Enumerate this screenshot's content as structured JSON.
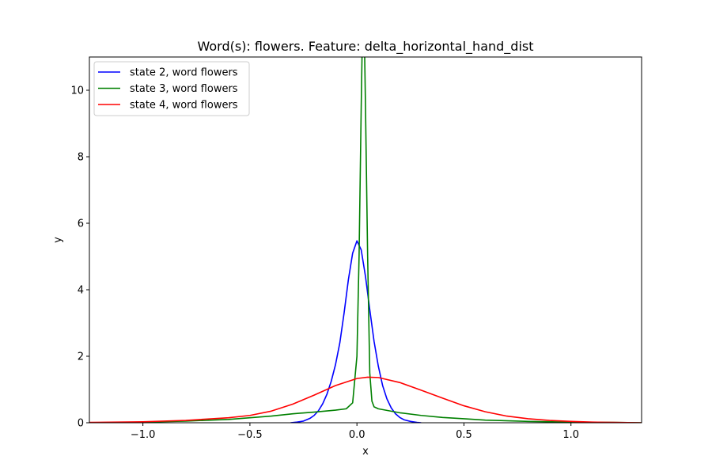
{
  "chart_data": {
    "type": "line",
    "title": "Word(s): flowers. Feature: delta_horizontal_hand_dist",
    "xlabel": "x",
    "ylabel": "y",
    "xlim": [
      -1.25,
      1.33
    ],
    "ylim": [
      0,
      11
    ],
    "x_ticks": [
      -1.0,
      -0.5,
      0.0,
      0.5,
      1.0
    ],
    "x_tick_labels": [
      "−1.0",
      "−0.5",
      "0.0",
      "0.5",
      "1.0"
    ],
    "y_ticks": [
      0,
      2,
      4,
      6,
      8,
      10
    ],
    "y_tick_labels": [
      "0",
      "2",
      "4",
      "6",
      "8",
      "10"
    ],
    "grid": false,
    "legend_position": "top-left",
    "series": [
      {
        "name": "state 2, word flowers",
        "color": "#0000ff",
        "x": [
          -0.31,
          -0.28,
          -0.25,
          -0.22,
          -0.2,
          -0.18,
          -0.16,
          -0.14,
          -0.12,
          -0.1,
          -0.08,
          -0.06,
          -0.04,
          -0.02,
          0.0,
          0.02,
          0.04,
          0.06,
          0.08,
          0.1,
          0.12,
          0.14,
          0.16,
          0.18,
          0.2,
          0.22,
          0.25,
          0.28,
          0.3
        ],
        "y": [
          0.0,
          0.02,
          0.05,
          0.13,
          0.22,
          0.36,
          0.57,
          0.86,
          1.25,
          1.75,
          2.4,
          3.3,
          4.3,
          5.1,
          5.47,
          5.2,
          4.4,
          3.4,
          2.45,
          1.7,
          1.12,
          0.72,
          0.45,
          0.27,
          0.16,
          0.09,
          0.04,
          0.01,
          0.0
        ]
      },
      {
        "name": "state 3, word flowers",
        "color": "#008000",
        "x": [
          -1.25,
          -1.0,
          -0.8,
          -0.6,
          -0.4,
          -0.3,
          -0.2,
          -0.15,
          -0.1,
          -0.05,
          -0.02,
          0.0,
          0.01,
          0.02,
          0.025,
          0.03,
          0.035,
          0.04,
          0.05,
          0.06,
          0.07,
          0.08,
          0.1,
          0.15,
          0.2,
          0.3,
          0.4,
          0.5,
          0.6,
          0.8,
          1.0,
          1.2,
          1.33
        ],
        "y": [
          0.0,
          0.02,
          0.05,
          0.1,
          0.2,
          0.27,
          0.32,
          0.35,
          0.38,
          0.42,
          0.6,
          2.0,
          5.0,
          9.5,
          11.5,
          11.5,
          11.5,
          9.5,
          5.0,
          1.5,
          0.65,
          0.48,
          0.42,
          0.36,
          0.3,
          0.22,
          0.16,
          0.12,
          0.08,
          0.04,
          0.02,
          0.01,
          0.0
        ]
      },
      {
        "name": "state 4, word flowers",
        "color": "#ff0000",
        "x": [
          -1.25,
          -1.0,
          -0.8,
          -0.6,
          -0.5,
          -0.4,
          -0.3,
          -0.2,
          -0.1,
          0.0,
          0.05,
          0.1,
          0.2,
          0.3,
          0.4,
          0.5,
          0.6,
          0.7,
          0.8,
          0.9,
          1.0,
          1.1,
          1.2,
          1.33
        ],
        "y": [
          0.01,
          0.03,
          0.07,
          0.15,
          0.22,
          0.35,
          0.56,
          0.83,
          1.12,
          1.33,
          1.37,
          1.36,
          1.21,
          0.98,
          0.74,
          0.51,
          0.33,
          0.2,
          0.12,
          0.07,
          0.04,
          0.02,
          0.01,
          0.0
        ]
      }
    ]
  }
}
